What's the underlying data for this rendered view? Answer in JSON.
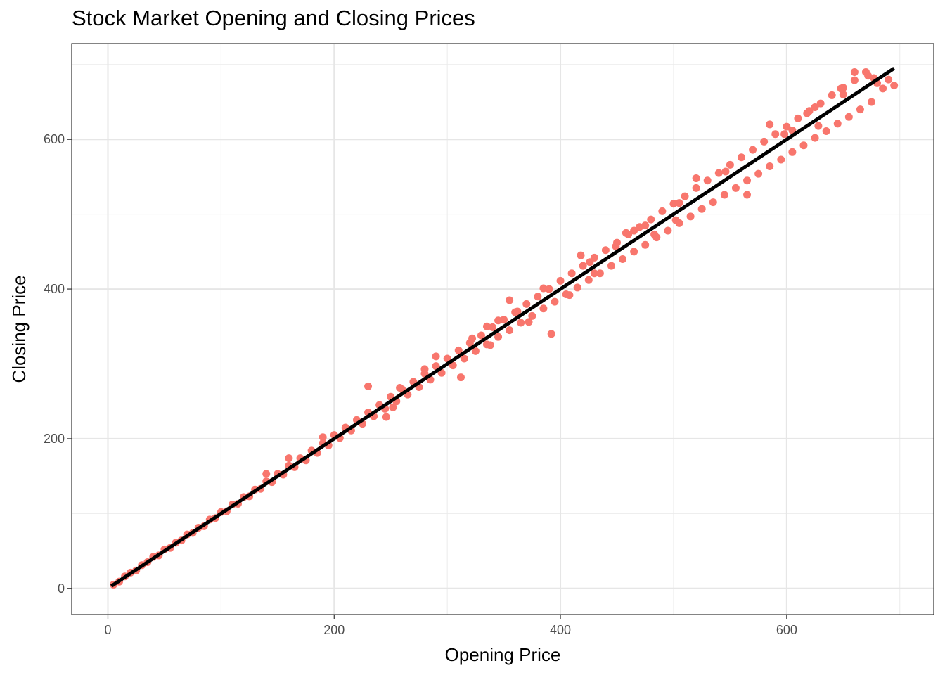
{
  "chart_data": {
    "type": "scatter",
    "title": "Stock Market Opening and Closing Prices",
    "xlabel": "Opening Price",
    "ylabel": "Closing Price",
    "xlim": [
      -32,
      730
    ],
    "ylim": [
      -35,
      728
    ],
    "x_ticks": [
      0,
      200,
      400,
      600
    ],
    "y_ticks": [
      0,
      200,
      400,
      600
    ],
    "x_minor": [
      100,
      300,
      500,
      700
    ],
    "y_minor": [
      100,
      300,
      500,
      700
    ],
    "grid": true,
    "legend": "none",
    "point_color": "#F8766D",
    "trend_line": {
      "color": "#000000",
      "from": [
        3,
        3
      ],
      "to": [
        695,
        695
      ]
    },
    "series": [
      {
        "points": [
          [
            5,
            5
          ],
          [
            10,
            9
          ],
          [
            15,
            16
          ],
          [
            20,
            21
          ],
          [
            25,
            24
          ],
          [
            30,
            31
          ],
          [
            35,
            35
          ],
          [
            40,
            42
          ],
          [
            45,
            44
          ],
          [
            50,
            52
          ],
          [
            55,
            54
          ],
          [
            60,
            61
          ],
          [
            65,
            64
          ],
          [
            70,
            72
          ],
          [
            75,
            74
          ],
          [
            80,
            81
          ],
          [
            85,
            83
          ],
          [
            90,
            92
          ],
          [
            95,
            94
          ],
          [
            100,
            102
          ],
          [
            105,
            103
          ],
          [
            110,
            112
          ],
          [
            115,
            113
          ],
          [
            120,
            122
          ],
          [
            125,
            123
          ],
          [
            130,
            132
          ],
          [
            135,
            133
          ],
          [
            140,
            143
          ],
          [
            145,
            142
          ],
          [
            150,
            153
          ],
          [
            155,
            152
          ],
          [
            160,
            164
          ],
          [
            165,
            162
          ],
          [
            170,
            174
          ],
          [
            175,
            171
          ],
          [
            180,
            184
          ],
          [
            185,
            181
          ],
          [
            190,
            194
          ],
          [
            195,
            191
          ],
          [
            200,
            205
          ],
          [
            205,
            201
          ],
          [
            210,
            214
          ],
          [
            215,
            211
          ],
          [
            220,
            225
          ],
          [
            225,
            220
          ],
          [
            230,
            235
          ],
          [
            235,
            230
          ],
          [
            240,
            245
          ],
          [
            245,
            240
          ],
          [
            250,
            256
          ],
          [
            255,
            250
          ],
          [
            260,
            266
          ],
          [
            265,
            259
          ],
          [
            270,
            276
          ],
          [
            275,
            269
          ],
          [
            280,
            287
          ],
          [
            285,
            279
          ],
          [
            290,
            297
          ],
          [
            295,
            288
          ],
          [
            300,
            307
          ],
          [
            305,
            298
          ],
          [
            310,
            318
          ],
          [
            315,
            307
          ],
          [
            320,
            328
          ],
          [
            325,
            317
          ],
          [
            330,
            338
          ],
          [
            335,
            326
          ],
          [
            340,
            349
          ],
          [
            345,
            336
          ],
          [
            350,
            359
          ],
          [
            355,
            345
          ],
          [
            360,
            369
          ],
          [
            365,
            355
          ],
          [
            370,
            380
          ],
          [
            375,
            364
          ],
          [
            380,
            390
          ],
          [
            385,
            374
          ],
          [
            390,
            400
          ],
          [
            395,
            383
          ],
          [
            400,
            411
          ],
          [
            405,
            393
          ],
          [
            410,
            421
          ],
          [
            415,
            402
          ],
          [
            420,
            431
          ],
          [
            425,
            412
          ],
          [
            430,
            442
          ],
          [
            435,
            421
          ],
          [
            440,
            452
          ],
          [
            445,
            431
          ],
          [
            450,
            462
          ],
          [
            455,
            440
          ],
          [
            460,
            473
          ],
          [
            465,
            450
          ],
          [
            470,
            483
          ],
          [
            475,
            459
          ],
          [
            480,
            493
          ],
          [
            485,
            469
          ],
          [
            490,
            504
          ],
          [
            495,
            478
          ],
          [
            500,
            514
          ],
          [
            505,
            488
          ],
          [
            510,
            524
          ],
          [
            515,
            497
          ],
          [
            520,
            535
          ],
          [
            525,
            507
          ],
          [
            530,
            545
          ],
          [
            535,
            516
          ],
          [
            540,
            555
          ],
          [
            545,
            526
          ],
          [
            550,
            566
          ],
          [
            555,
            535
          ],
          [
            560,
            576
          ],
          [
            565,
            545
          ],
          [
            570,
            586
          ],
          [
            575,
            554
          ],
          [
            580,
            597
          ],
          [
            585,
            564
          ],
          [
            590,
            607
          ],
          [
            595,
            573
          ],
          [
            600,
            617
          ],
          [
            605,
            583
          ],
          [
            610,
            628
          ],
          [
            615,
            592
          ],
          [
            620,
            638
          ],
          [
            625,
            602
          ],
          [
            630,
            648
          ],
          [
            635,
            611
          ],
          [
            640,
            659
          ],
          [
            645,
            621
          ],
          [
            650,
            669
          ],
          [
            655,
            630
          ],
          [
            660,
            679
          ],
          [
            665,
            640
          ],
          [
            670,
            690
          ],
          [
            675,
            650
          ],
          [
            680,
            675
          ],
          [
            685,
            668
          ],
          [
            690,
            680
          ],
          [
            695,
            672
          ],
          [
            230,
            270
          ],
          [
            252,
            242
          ],
          [
            290,
            310
          ],
          [
            335,
            350
          ],
          [
            312,
            282
          ],
          [
            355,
            385
          ],
          [
            362,
            370
          ],
          [
            372,
            356
          ],
          [
            408,
            392
          ],
          [
            392,
            340
          ],
          [
            418,
            445
          ],
          [
            449,
            457
          ],
          [
            458,
            475
          ],
          [
            483,
            473
          ],
          [
            520,
            548
          ],
          [
            546,
            557
          ],
          [
            565,
            526
          ],
          [
            585,
            620
          ],
          [
            618,
            635
          ],
          [
            628,
            618
          ],
          [
            648,
            668
          ],
          [
            672,
            685
          ],
          [
            660,
            690
          ],
          [
            677,
            682
          ],
          [
            502,
            492
          ],
          [
            475,
            485
          ],
          [
            258,
            268
          ],
          [
            210,
            215
          ],
          [
            190,
            202
          ],
          [
            140,
            153
          ],
          [
            160,
            174
          ],
          [
            246,
            229
          ],
          [
            322,
            334
          ],
          [
            345,
            358
          ],
          [
            385,
            401
          ],
          [
            426,
            436
          ],
          [
            465,
            478
          ],
          [
            505,
            515
          ],
          [
            605,
            612
          ],
          [
            650,
            660
          ],
          [
            625,
            643
          ],
          [
            598,
            607
          ],
          [
            338,
            325
          ],
          [
            280,
            293
          ],
          [
            430,
            421
          ]
        ]
      }
    ]
  }
}
